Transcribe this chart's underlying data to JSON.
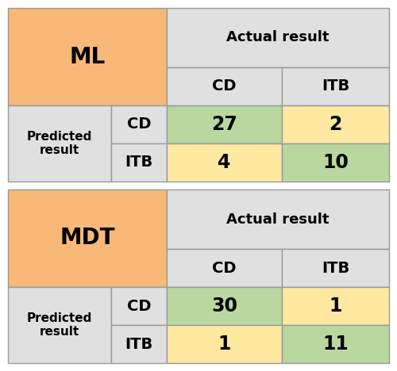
{
  "tables": [
    {
      "label": "ML",
      "values": [
        [
          27,
          2
        ],
        [
          4,
          10
        ]
      ],
      "actual_label": "Actual result",
      "predicted_label": "Predicted\nresult",
      "col_labels": [
        "CD",
        "ITB"
      ],
      "row_labels": [
        "CD",
        "ITB"
      ]
    },
    {
      "label": "MDT",
      "values": [
        [
          30,
          1
        ],
        [
          1,
          11
        ]
      ],
      "actual_label": "Actual result",
      "predicted_label": "Predicted\nresult",
      "col_labels": [
        "CD",
        "ITB"
      ],
      "row_labels": [
        "CD",
        "ITB"
      ]
    }
  ],
  "colors": {
    "orange": "#F8B878",
    "light_gray": "#E0E0E0",
    "green": "#B8D8A0",
    "yellow": "#FFE8A0",
    "white": "#FFFFFF",
    "border": "#999999"
  },
  "figsize": [
    5.0,
    4.68
  ],
  "dpi": 100
}
